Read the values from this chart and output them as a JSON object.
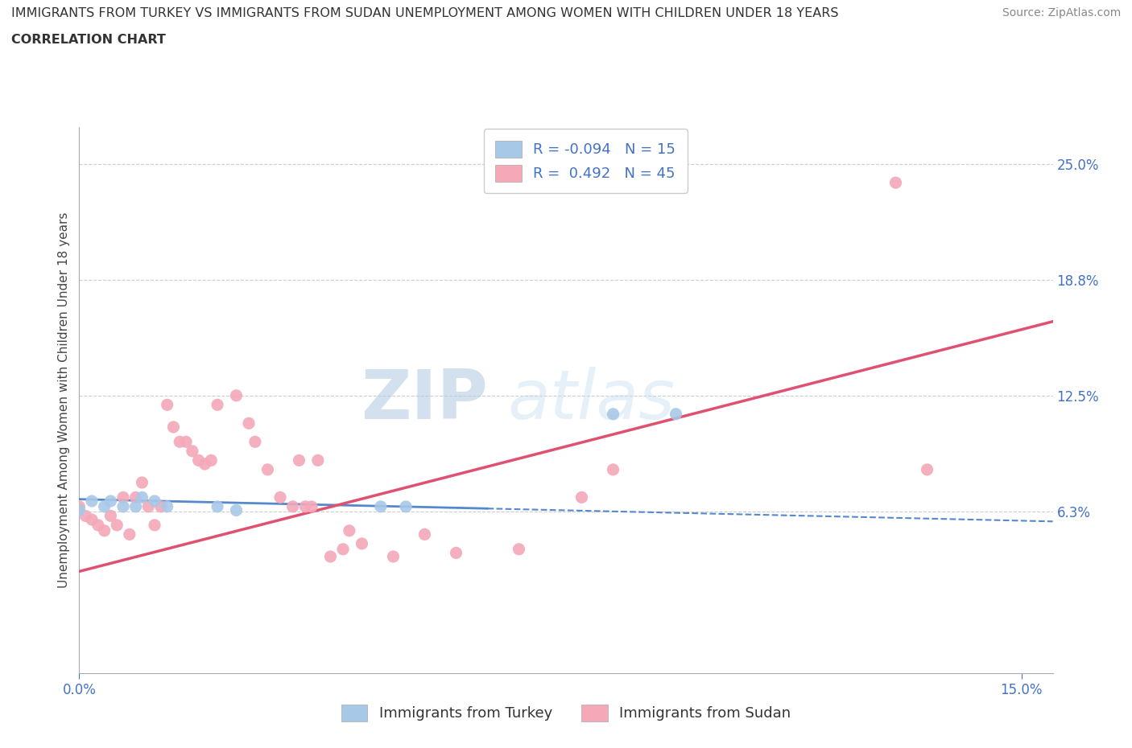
{
  "title_line1": "IMMIGRANTS FROM TURKEY VS IMMIGRANTS FROM SUDAN UNEMPLOYMENT AMONG WOMEN WITH CHILDREN UNDER 18 YEARS",
  "title_line2": "CORRELATION CHART",
  "source": "Source: ZipAtlas.com",
  "ylabel": "Unemployment Among Women with Children Under 18 years",
  "y_ticks": [
    0.0,
    0.0625,
    0.125,
    0.1875,
    0.25
  ],
  "y_tick_labels": [
    "",
    "6.3%",
    "12.5%",
    "18.8%",
    "25.0%"
  ],
  "xlim": [
    0.0,
    0.155
  ],
  "ylim": [
    -0.025,
    0.27
  ],
  "turkey_color": "#a8c8e8",
  "sudan_color": "#f4a8b8",
  "turkey_line_color": "#5588cc",
  "sudan_line_color": "#e05070",
  "turkey_R": -0.094,
  "turkey_N": 15,
  "sudan_R": 0.492,
  "sudan_N": 45,
  "watermark_zip": "ZIP",
  "watermark_atlas": "atlas",
  "legend_label_turkey": "Immigrants from Turkey",
  "legend_label_sudan": "Immigrants from Sudan",
  "turkey_scatter_x": [
    0.0,
    0.002,
    0.004,
    0.005,
    0.007,
    0.009,
    0.01,
    0.012,
    0.014,
    0.022,
    0.025,
    0.048,
    0.052,
    0.085,
    0.095
  ],
  "turkey_scatter_y": [
    0.063,
    0.068,
    0.065,
    0.068,
    0.065,
    0.065,
    0.07,
    0.068,
    0.065,
    0.065,
    0.063,
    0.065,
    0.065,
    0.115,
    0.115
  ],
  "sudan_scatter_x": [
    0.0,
    0.001,
    0.002,
    0.003,
    0.004,
    0.005,
    0.006,
    0.007,
    0.008,
    0.009,
    0.01,
    0.011,
    0.012,
    0.013,
    0.014,
    0.015,
    0.016,
    0.017,
    0.018,
    0.019,
    0.02,
    0.021,
    0.022,
    0.025,
    0.027,
    0.028,
    0.03,
    0.032,
    0.034,
    0.035,
    0.036,
    0.037,
    0.038,
    0.04,
    0.042,
    0.043,
    0.045,
    0.05,
    0.055,
    0.06,
    0.07,
    0.08,
    0.085,
    0.13,
    0.135
  ],
  "sudan_scatter_y": [
    0.065,
    0.06,
    0.058,
    0.055,
    0.052,
    0.06,
    0.055,
    0.07,
    0.05,
    0.07,
    0.078,
    0.065,
    0.055,
    0.065,
    0.12,
    0.108,
    0.1,
    0.1,
    0.095,
    0.09,
    0.088,
    0.09,
    0.12,
    0.125,
    0.11,
    0.1,
    0.085,
    0.07,
    0.065,
    0.09,
    0.065,
    0.065,
    0.09,
    0.038,
    0.042,
    0.052,
    0.045,
    0.038,
    0.05,
    0.04,
    0.042,
    0.07,
    0.085,
    0.24,
    0.085
  ],
  "turkey_trend_x": [
    0.0,
    0.155
  ],
  "turkey_trend_y": [
    0.069,
    0.057
  ],
  "sudan_trend_x": [
    0.0,
    0.155
  ],
  "sudan_trend_y": [
    0.03,
    0.165
  ]
}
